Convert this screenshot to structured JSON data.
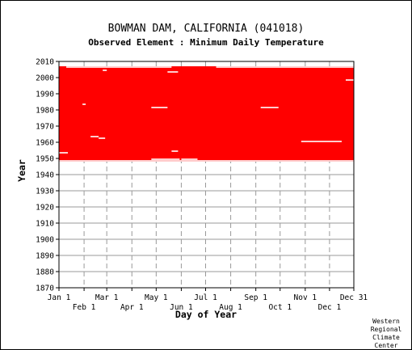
{
  "chart_data": {
    "type": "scatter",
    "title": "BOWMAN DAM, CALIFORNIA   (041018)",
    "subtitle": "Observed Element : Minimum Daily Temperature",
    "xlabel": "Day of Year",
    "ylabel": "Year",
    "x_ticks_top_row": [
      "Jan 1",
      "Mar 1",
      "May 1",
      "Jul 1",
      "Sep 1",
      "Nov 1",
      "Dec 31"
    ],
    "x_ticks_bottom_row": [
      "Feb 1",
      "Apr 1",
      "Jun 1",
      "Aug 1",
      "Oct 1",
      "Dec 1"
    ],
    "x_tick_days": [
      1,
      32,
      60,
      91,
      121,
      152,
      182,
      213,
      244,
      274,
      305,
      335,
      365
    ],
    "y_ticks": [
      1870,
      1880,
      1890,
      1900,
      1910,
      1920,
      1930,
      1940,
      1950,
      1960,
      1970,
      1980,
      1990,
      2000,
      2010
    ],
    "xlim": [
      1,
      365
    ],
    "ylim": [
      1870,
      2010
    ],
    "grid": true,
    "grid_color": "#999999",
    "data_color": "#ff0000",
    "series": [
      {
        "note": "Dense coverage of daily observations",
        "year_range": [
          1948,
          2006
        ],
        "day_range": [
          1,
          365
        ]
      }
    ],
    "gaps": [
      {
        "year": 1948,
        "day_start": 1,
        "day_end": 365
      },
      {
        "year": 1949,
        "day_start": 115,
        "day_end": 150
      },
      {
        "year": 1949,
        "day_start": 152,
        "day_end": 172
      },
      {
        "year": 1953,
        "day_start": 1,
        "day_end": 12
      },
      {
        "year": 1954,
        "day_start": 140,
        "day_end": 148
      },
      {
        "year": 1960,
        "day_start": 300,
        "day_end": 350
      },
      {
        "year": 1962,
        "day_start": 50,
        "day_end": 58
      },
      {
        "year": 1963,
        "day_start": 40,
        "day_end": 50
      },
      {
        "year": 1981,
        "day_start": 115,
        "day_end": 135
      },
      {
        "year": 1981,
        "day_start": 250,
        "day_end": 272
      },
      {
        "year": 1983,
        "day_start": 30,
        "day_end": 34
      },
      {
        "year": 1998,
        "day_start": 355,
        "day_end": 365
      },
      {
        "year": 2003,
        "day_start": 135,
        "day_end": 148
      },
      {
        "year": 2004,
        "day_start": 55,
        "day_end": 60
      },
      {
        "year": 2006,
        "day_start": 10,
        "day_end": 140
      },
      {
        "year": 2006,
        "day_start": 195,
        "day_end": 365
      }
    ],
    "credit": [
      "Western",
      "Regional",
      "Climate",
      "Center"
    ]
  }
}
